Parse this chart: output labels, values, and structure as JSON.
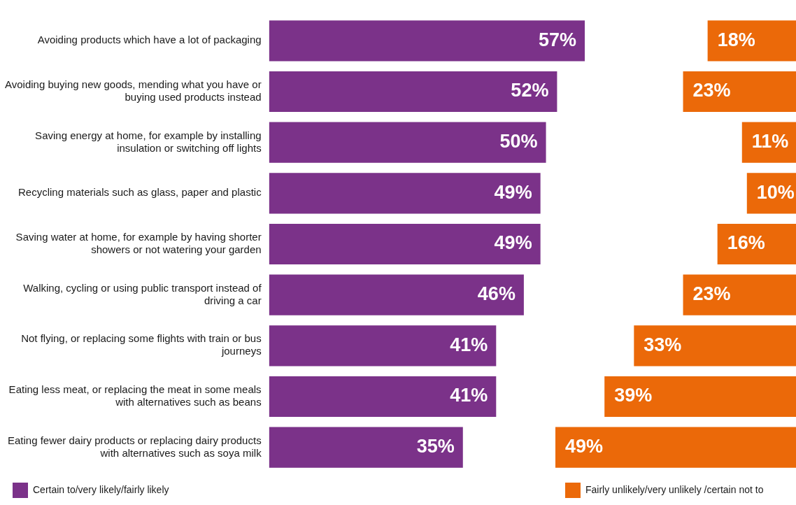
{
  "chart_data": [
    {
      "type": "bar",
      "orientation": "horizontal",
      "categories": [
        "Avoiding products which have a lot of packaging",
        "Avoiding buying new goods, mending what you have or buying used products instead",
        "Saving energy at home, for example by installing insulation or switching off lights",
        "Recycling materials such as glass, paper and plastic",
        "Saving water at home, for example by having shorter showers or not watering your garden",
        "Walking, cycling or using public transport instead of driving a car",
        "Not flying, or replacing some flights with train or bus journeys",
        "Eating less meat, or replacing the meat in some meals with alternatives such as beans",
        "Eating fewer dairy products or replacing dairy products with alternatives such as soya milk"
      ],
      "series": [
        {
          "name": "Certain to/very likely/fairly likely",
          "color": "#7b3289",
          "values": [
            57,
            52,
            50,
            49,
            49,
            46,
            41,
            41,
            35
          ],
          "value_labels": [
            "57%",
            "52%",
            "50%",
            "49%",
            "49%",
            "46%",
            "41%",
            "41%",
            "35%"
          ]
        }
      ],
      "xlim": [
        0,
        57
      ],
      "tick_labels": "y",
      "grid": false,
      "legend": "bottom"
    },
    {
      "type": "bar",
      "orientation": "horizontal",
      "categories": [
        null,
        null,
        null,
        null,
        null,
        null,
        null,
        null,
        null
      ],
      "series": [
        {
          "name": "Fairly unlikely/very unlikely /certain not to",
          "color": "#eb6909",
          "values": [
            18,
            23,
            11,
            10,
            16,
            23,
            33,
            39,
            49
          ],
          "value_labels": [
            "18%",
            "23%",
            "11%",
            "10%",
            "16%",
            "23%",
            "33%",
            "39%",
            "49%"
          ]
        }
      ],
      "xlim": [
        49,
        0
      ],
      "tick_labels": false,
      "grid": false,
      "legend": "bottom"
    }
  ]
}
